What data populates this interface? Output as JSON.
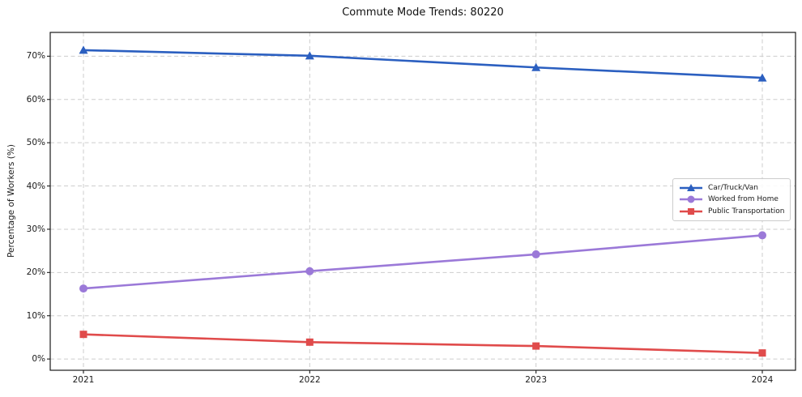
{
  "chart_data": {
    "type": "line",
    "title": "Commute Mode Trends: 80220",
    "xlabel": "",
    "ylabel": "Percentage of Workers (%)",
    "categories": [
      "2021",
      "2022",
      "2023",
      "2024"
    ],
    "series": [
      {
        "name": "Car/Truck/Van",
        "color": "#2b5fc0",
        "marker": "triangle-up",
        "values": [
          71.4,
          70.1,
          67.4,
          65.0
        ]
      },
      {
        "name": "Worked from Home",
        "color": "#9b79d8",
        "marker": "circle",
        "values": [
          16.3,
          20.3,
          24.2,
          28.6
        ]
      },
      {
        "name": "Public Transportation",
        "color": "#e04b4b",
        "marker": "square",
        "values": [
          5.7,
          3.9,
          3.0,
          1.4
        ]
      }
    ],
    "yticks": [
      0,
      10,
      20,
      30,
      40,
      50,
      60,
      70
    ],
    "ytick_format": "{v}%",
    "ylim": [
      -2.6,
      75.5
    ],
    "grid": true,
    "grid_style": "dashed",
    "legend_position": "center-right",
    "colors": {
      "grid": "#cdcdcd",
      "spine": "#1a1a1a",
      "background": "#ffffff",
      "text": "#1a1a1a"
    }
  }
}
